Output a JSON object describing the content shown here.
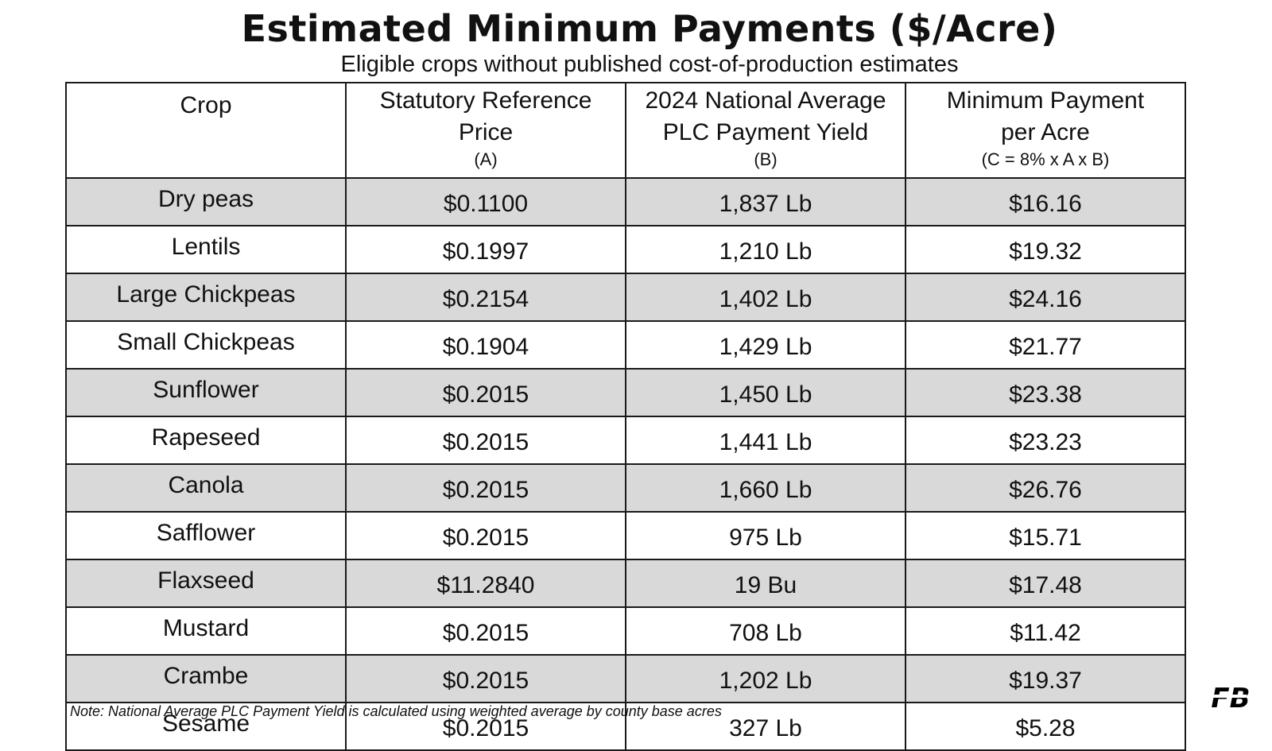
{
  "title": "Estimated Minimum Payments ($/Acre)",
  "subtitle": "Eligible crops without published cost-of-production estimates",
  "note": "Note: National Average PLC Payment Yield is calculated using weighted average by county base acres",
  "logo": {
    "icon": "farm-bureau-fb-logo",
    "text": "FB",
    "color": "#000000"
  },
  "colors": {
    "shaded_row": "#d9d9d9",
    "border": "#1a1a1a"
  },
  "chart_data": {
    "type": "table",
    "columns": [
      {
        "line1": "Crop",
        "line2": "",
        "sub": ""
      },
      {
        "line1": "Statutory Reference",
        "line2": "Price",
        "sub": "(A)"
      },
      {
        "line1": "2024 National Average",
        "line2": "PLC Payment Yield",
        "sub": "(B)"
      },
      {
        "line1": "Minimum Payment",
        "line2": "per Acre",
        "sub": "(C = 8% x A x B)"
      }
    ],
    "rows": [
      {
        "crop": "Dry peas",
        "price": "$0.1100",
        "yield": "1,837 Lb",
        "payment": "$16.16"
      },
      {
        "crop": "Lentils",
        "price": "$0.1997",
        "yield": "1,210 Lb",
        "payment": "$19.32"
      },
      {
        "crop": "Large Chickpeas",
        "price": "$0.2154",
        "yield": "1,402 Lb",
        "payment": "$24.16"
      },
      {
        "crop": "Small Chickpeas",
        "price": "$0.1904",
        "yield": "1,429 Lb",
        "payment": "$21.77"
      },
      {
        "crop": "Sunflower",
        "price": "$0.2015",
        "yield": "1,450 Lb",
        "payment": "$23.38"
      },
      {
        "crop": "Rapeseed",
        "price": "$0.2015",
        "yield": "1,441 Lb",
        "payment": "$23.23"
      },
      {
        "crop": "Canola",
        "price": "$0.2015",
        "yield": "1,660 Lb",
        "payment": "$26.76"
      },
      {
        "crop": "Safflower",
        "price": "$0.2015",
        "yield": "975 Lb",
        "payment": "$15.71"
      },
      {
        "crop": "Flaxseed",
        "price": "$11.2840",
        "yield": "19 Bu",
        "payment": "$17.48"
      },
      {
        "crop": "Mustard",
        "price": "$0.2015",
        "yield": "708 Lb",
        "payment": "$11.42"
      },
      {
        "crop": "Crambe",
        "price": "$0.2015",
        "yield": "1,202 Lb",
        "payment": "$19.37"
      },
      {
        "crop": "Sesame",
        "price": "$0.2015",
        "yield": "327 Lb",
        "payment": "$5.28"
      }
    ]
  }
}
